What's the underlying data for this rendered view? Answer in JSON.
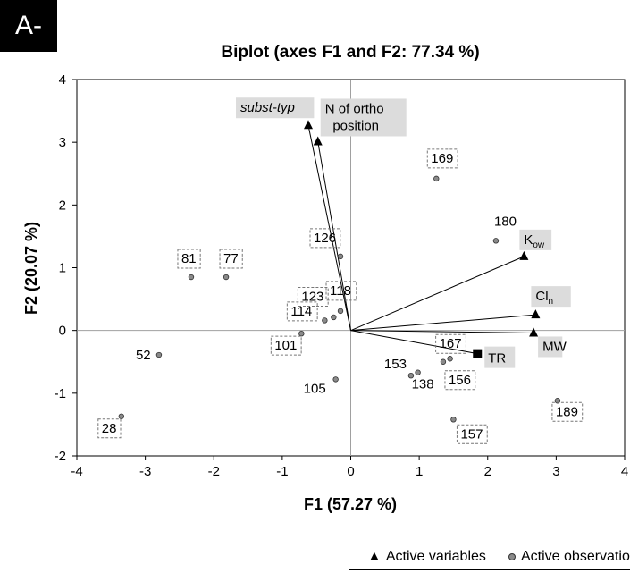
{
  "panel_label": "A-",
  "chart_data": {
    "type": "scatter",
    "title": "Biplot (axes F1 and F2: 77.34 %)",
    "xlabel": "F1 (57.27 %)",
    "ylabel": "F2 (20.07 %)",
    "xlim": [
      -4,
      4
    ],
    "ylim": [
      -2,
      4
    ],
    "x_ticks": [
      -4,
      -3,
      -2,
      -1,
      0,
      1,
      2,
      3,
      4
    ],
    "y_ticks": [
      -2,
      -1,
      0,
      1,
      2,
      3,
      4
    ],
    "grid": false,
    "legend_position": "bottom",
    "legend": [
      {
        "label": "Active variables",
        "marker": "triangle"
      },
      {
        "label": "Active observations",
        "marker": "circle"
      }
    ],
    "active_variables": [
      {
        "label": "subst-typ",
        "x": -0.62,
        "y": 3.27,
        "italic": true,
        "boxed": false
      },
      {
        "label": "N of ortho",
        "label2": "position",
        "x": -0.48,
        "y": 3.01,
        "boxed": false
      },
      {
        "label": "K",
        "sub": "ow",
        "x": 2.53,
        "y": 1.18,
        "boxed": false
      },
      {
        "label": "Cl",
        "sub": "n",
        "x": 2.7,
        "y": 0.25,
        "boxed": false
      },
      {
        "label": "MW",
        "x": 2.67,
        "y": -0.04,
        "boxed": false
      }
    ],
    "supplementary_variables": [
      {
        "label": "TR",
        "x": 1.85,
        "y": -0.37,
        "marker": "square"
      }
    ],
    "observations": [
      {
        "label": "169",
        "x": 1.25,
        "y": 2.42,
        "boxed": true
      },
      {
        "label": "180",
        "x": 2.12,
        "y": 1.43,
        "boxed": false
      },
      {
        "label": "126",
        "x": -0.15,
        "y": 1.18,
        "boxed": true
      },
      {
        "label": "81",
        "x": -2.33,
        "y": 0.85,
        "boxed": true
      },
      {
        "label": "77",
        "x": -1.82,
        "y": 0.85,
        "boxed": true
      },
      {
        "label": "123",
        "x": -0.38,
        "y": 0.16,
        "boxed": true
      },
      {
        "label": "114",
        "x": -0.25,
        "y": 0.21,
        "boxed": true
      },
      {
        "label": "118",
        "x": -0.15,
        "y": 0.31,
        "boxed": true
      },
      {
        "label": "101",
        "x": -0.72,
        "y": -0.05,
        "boxed": true
      },
      {
        "label": "52",
        "x": -2.8,
        "y": -0.39,
        "boxed": false
      },
      {
        "label": "167",
        "x": 1.45,
        "y": -0.45,
        "boxed": true
      },
      {
        "label": "156",
        "x": 1.35,
        "y": -0.5,
        "boxed": true
      },
      {
        "label": "153",
        "x": 0.88,
        "y": -0.72,
        "boxed": false
      },
      {
        "label": "138",
        "x": 0.98,
        "y": -0.67,
        "boxed": false
      },
      {
        "label": "105",
        "x": -0.22,
        "y": -0.78,
        "boxed": false
      },
      {
        "label": "157",
        "x": 1.5,
        "y": -1.42,
        "boxed": true
      },
      {
        "label": "189",
        "x": 3.02,
        "y": -1.12,
        "boxed": true
      },
      {
        "label": "28",
        "x": -3.35,
        "y": -1.37,
        "boxed": true
      }
    ]
  }
}
